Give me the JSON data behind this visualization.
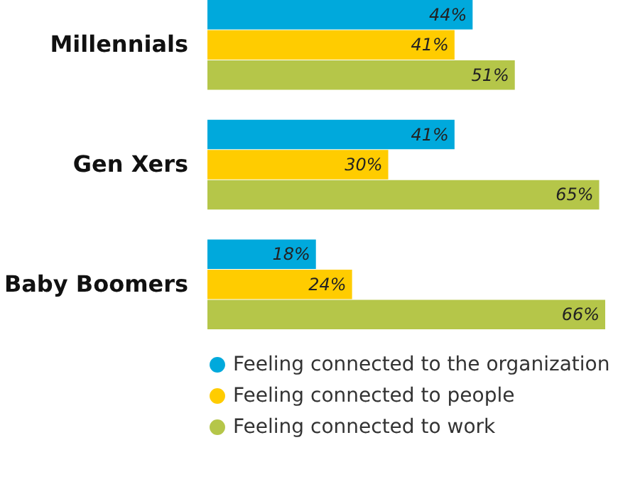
{
  "chart_data": {
    "type": "bar",
    "orientation": "horizontal",
    "categories": [
      "Millennials",
      "Gen Xers",
      "Baby Boomers"
    ],
    "series": [
      {
        "name": "Feeling connected to the organization",
        "color": "#00a9dc",
        "values": [
          44,
          41,
          18
        ],
        "value_labels": [
          "44%",
          "41%",
          "18%"
        ]
      },
      {
        "name": "Feeling connected to people",
        "color": "#ffcc00",
        "values": [
          41,
          30,
          24
        ],
        "value_labels": [
          "41%",
          "30%",
          "24%"
        ]
      },
      {
        "name": "Feeling connected to work",
        "color": "#b5c649",
        "values": [
          51,
          65,
          66
        ],
        "value_labels": [
          "51%",
          "65%",
          "66%"
        ]
      }
    ],
    "legend": "bottom"
  }
}
